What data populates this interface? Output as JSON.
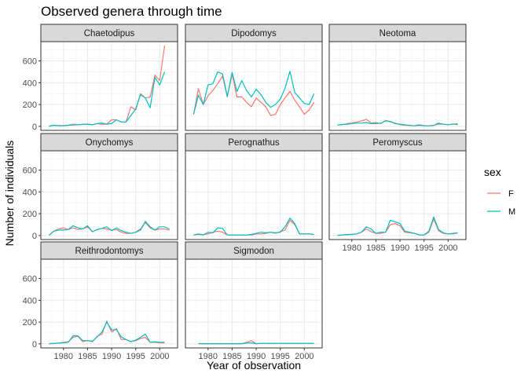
{
  "chart_data": {
    "type": "line",
    "title": "Observed genera through time",
    "xlabel": "Year of observation",
    "ylabel": "Number of individuals",
    "xlim": [
      1975.3,
      2003.7
    ],
    "ylim": [
      -37,
      777
    ],
    "x_ticks": [
      1980,
      1985,
      1990,
      1995,
      2000
    ],
    "y_ticks": [
      0,
      200,
      400,
      600
    ],
    "grid": true,
    "legend": {
      "title": "sex",
      "position": "right",
      "entries": [
        {
          "label": "F",
          "color": "#F8766D"
        },
        {
          "label": "M",
          "color": "#00BFC4"
        }
      ]
    },
    "years": [
      1977,
      1978,
      1979,
      1980,
      1981,
      1982,
      1983,
      1984,
      1985,
      1986,
      1987,
      1988,
      1989,
      1990,
      1991,
      1992,
      1993,
      1994,
      1995,
      1996,
      1997,
      1998,
      1999,
      2000,
      2001,
      2002
    ],
    "panels": [
      {
        "name": "Chaetodipus",
        "F": [
          2,
          10,
          8,
          8,
          10,
          20,
          15,
          18,
          20,
          15,
          25,
          20,
          20,
          60,
          60,
          40,
          40,
          180,
          150,
          300,
          260,
          270,
          470,
          420,
          740,
          null
        ],
        "M": [
          2,
          10,
          5,
          5,
          10,
          12,
          15,
          18,
          20,
          15,
          25,
          30,
          20,
          25,
          60,
          40,
          40,
          100,
          160,
          290,
          260,
          170,
          450,
          380,
          500,
          null
        ]
      },
      {
        "name": "Dipodomys",
        "F": [
          110,
          345,
          200,
          280,
          330,
          390,
          460,
          270,
          480,
          270,
          270,
          220,
          180,
          260,
          220,
          180,
          100,
          110,
          200,
          260,
          320,
          240,
          180,
          110,
          150,
          220
        ],
        "M": [
          110,
          285,
          200,
          380,
          390,
          500,
          480,
          275,
          495,
          320,
          420,
          330,
          270,
          340,
          290,
          220,
          175,
          200,
          250,
          350,
          505,
          310,
          260,
          210,
          200,
          300
        ]
      },
      {
        "name": "Neotoma",
        "F": [
          12,
          15,
          25,
          30,
          40,
          50,
          65,
          30,
          35,
          25,
          55,
          40,
          30,
          15,
          10,
          10,
          5,
          15,
          8,
          5,
          10,
          20,
          20,
          15,
          20,
          25
        ],
        "M": [
          12,
          18,
          20,
          25,
          30,
          30,
          35,
          25,
          25,
          30,
          50,
          45,
          25,
          20,
          15,
          8,
          5,
          10,
          5,
          5,
          8,
          30,
          20,
          15,
          22,
          15
        ]
      },
      {
        "name": "Onychomys",
        "F": [
          2,
          40,
          60,
          70,
          55,
          70,
          55,
          60,
          80,
          35,
          55,
          65,
          60,
          50,
          55,
          30,
          20,
          20,
          30,
          60,
          120,
          70,
          50,
          60,
          60,
          50
        ],
        "M": [
          2,
          40,
          50,
          50,
          55,
          90,
          70,
          60,
          90,
          35,
          55,
          65,
          80,
          45,
          70,
          45,
          30,
          20,
          30,
          50,
          130,
          80,
          50,
          80,
          80,
          60
        ]
      },
      {
        "name": "Perognathus",
        "F": [
          5,
          10,
          8,
          15,
          30,
          40,
          30,
          5,
          5,
          4,
          5,
          5,
          5,
          15,
          15,
          20,
          30,
          20,
          35,
          50,
          140,
          100,
          15,
          15,
          15,
          10
        ],
        "M": [
          5,
          15,
          5,
          30,
          25,
          70,
          65,
          5,
          5,
          5,
          5,
          5,
          10,
          20,
          30,
          25,
          30,
          25,
          30,
          80,
          160,
          110,
          15,
          15,
          15,
          10
        ]
      },
      {
        "name": "Peromyscus",
        "F": [
          2,
          5,
          8,
          10,
          15,
          30,
          60,
          35,
          20,
          20,
          30,
          100,
          110,
          90,
          30,
          25,
          20,
          5,
          5,
          30,
          150,
          45,
          20,
          15,
          15,
          25
        ],
        "M": [
          2,
          5,
          10,
          10,
          15,
          30,
          80,
          60,
          20,
          30,
          30,
          140,
          125,
          110,
          40,
          30,
          20,
          5,
          5,
          40,
          170,
          55,
          25,
          15,
          20,
          25
        ]
      },
      {
        "name": "Reithrodontomys",
        "F": [
          2,
          5,
          8,
          15,
          20,
          60,
          70,
          20,
          30,
          20,
          70,
          90,
          210,
          110,
          140,
          40,
          40,
          20,
          30,
          50,
          60,
          15,
          15,
          10,
          10,
          null
        ],
        "M": [
          2,
          5,
          8,
          10,
          15,
          75,
          75,
          30,
          30,
          25,
          65,
          110,
          200,
          130,
          130,
          65,
          40,
          20,
          35,
          60,
          90,
          15,
          20,
          15,
          15,
          null
        ]
      },
      {
        "name": "Sigmodon",
        "F": [
          null,
          2,
          2,
          2,
          2,
          2,
          2,
          2,
          2,
          2,
          2,
          15,
          30,
          2,
          5,
          5,
          5,
          5,
          5,
          5,
          5,
          5,
          5,
          5,
          5,
          5
        ],
        "M": [
          null,
          2,
          2,
          2,
          2,
          2,
          2,
          2,
          2,
          2,
          2,
          8,
          10,
          2,
          5,
          5,
          5,
          5,
          5,
          5,
          5,
          5,
          5,
          5,
          5,
          5
        ]
      }
    ]
  }
}
